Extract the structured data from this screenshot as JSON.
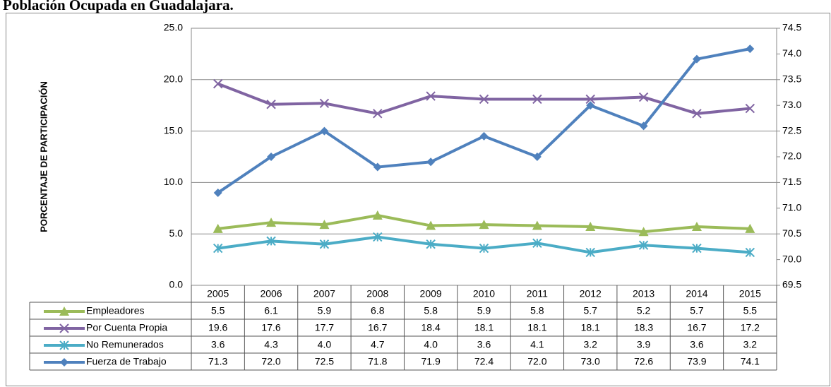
{
  "chart_data": {
    "type": "line",
    "title": "Población Ocupada en Guadalajara.",
    "ylabel": "PORCENTAJE DE PARTICIPACIÓN",
    "categories": [
      "2005",
      "2006",
      "2007",
      "2008",
      "2009",
      "2010",
      "2011",
      "2012",
      "2013",
      "2014",
      "2015"
    ],
    "ylim": [
      0,
      25
    ],
    "yticks": [
      {
        "value": 0,
        "label": "0.0"
      },
      {
        "value": 5,
        "label": "5.0"
      },
      {
        "value": 10,
        "label": "10.0"
      },
      {
        "value": 15,
        "label": "15.0"
      },
      {
        "value": 20,
        "label": "20.0"
      },
      {
        "value": 25,
        "label": "25.0"
      }
    ],
    "y2lim": [
      69.5,
      74.5
    ],
    "y2ticks": [
      69.5,
      {
        "value": 70,
        "label": "70.0"
      },
      70.5,
      {
        "value": 71,
        "label": "71.0"
      },
      71.5,
      {
        "value": 72,
        "label": "72.0"
      },
      72.5,
      {
        "value": 73,
        "label": "73.0"
      },
      73.5,
      {
        "value": 74,
        "label": "74.0"
      },
      74.5
    ],
    "grid": true,
    "series": [
      {
        "name": "Empleadores",
        "color": "#9bbb59",
        "marker": "triangle",
        "values": [
          5.5,
          6.1,
          5.9,
          6.8,
          5.8,
          5.9,
          5.8,
          5.7,
          5.2,
          5.7,
          5.5
        ]
      },
      {
        "name": "Por Cuenta Propia",
        "color": "#8064a2",
        "marker": "x",
        "values": [
          19.6,
          17.6,
          17.7,
          16.7,
          18.4,
          18.1,
          18.1,
          18.1,
          18.3,
          16.7,
          17.2
        ]
      },
      {
        "name": "No Remunerados",
        "color": "#4bacc6",
        "marker": "asterisk",
        "values": [
          3.6,
          4.3,
          4,
          4.7,
          4,
          3.6,
          4.1,
          3.2,
          3.9,
          3.6,
          3.2
        ],
        "value_labels": [
          "3.6",
          "4.3",
          "4.0",
          "4.7",
          "4.0",
          "3.6",
          "4.1",
          "3.2",
          "3.9",
          "3.6",
          "3.2"
        ]
      },
      {
        "name": "Fuerza de Trabajo",
        "color": "#4f81bd",
        "marker": "diamond",
        "axis": "y2",
        "values": [
          71.3,
          72,
          72.5,
          71.8,
          71.9,
          72.4,
          72,
          73,
          72.6,
          73.9,
          74.1
        ],
        "value_labels": [
          "71.3",
          "72.0",
          "72.5",
          "71.8",
          "71.9",
          "72.4",
          "72.0",
          "73.0",
          "72.6",
          "73.9",
          "74.1"
        ]
      }
    ]
  }
}
